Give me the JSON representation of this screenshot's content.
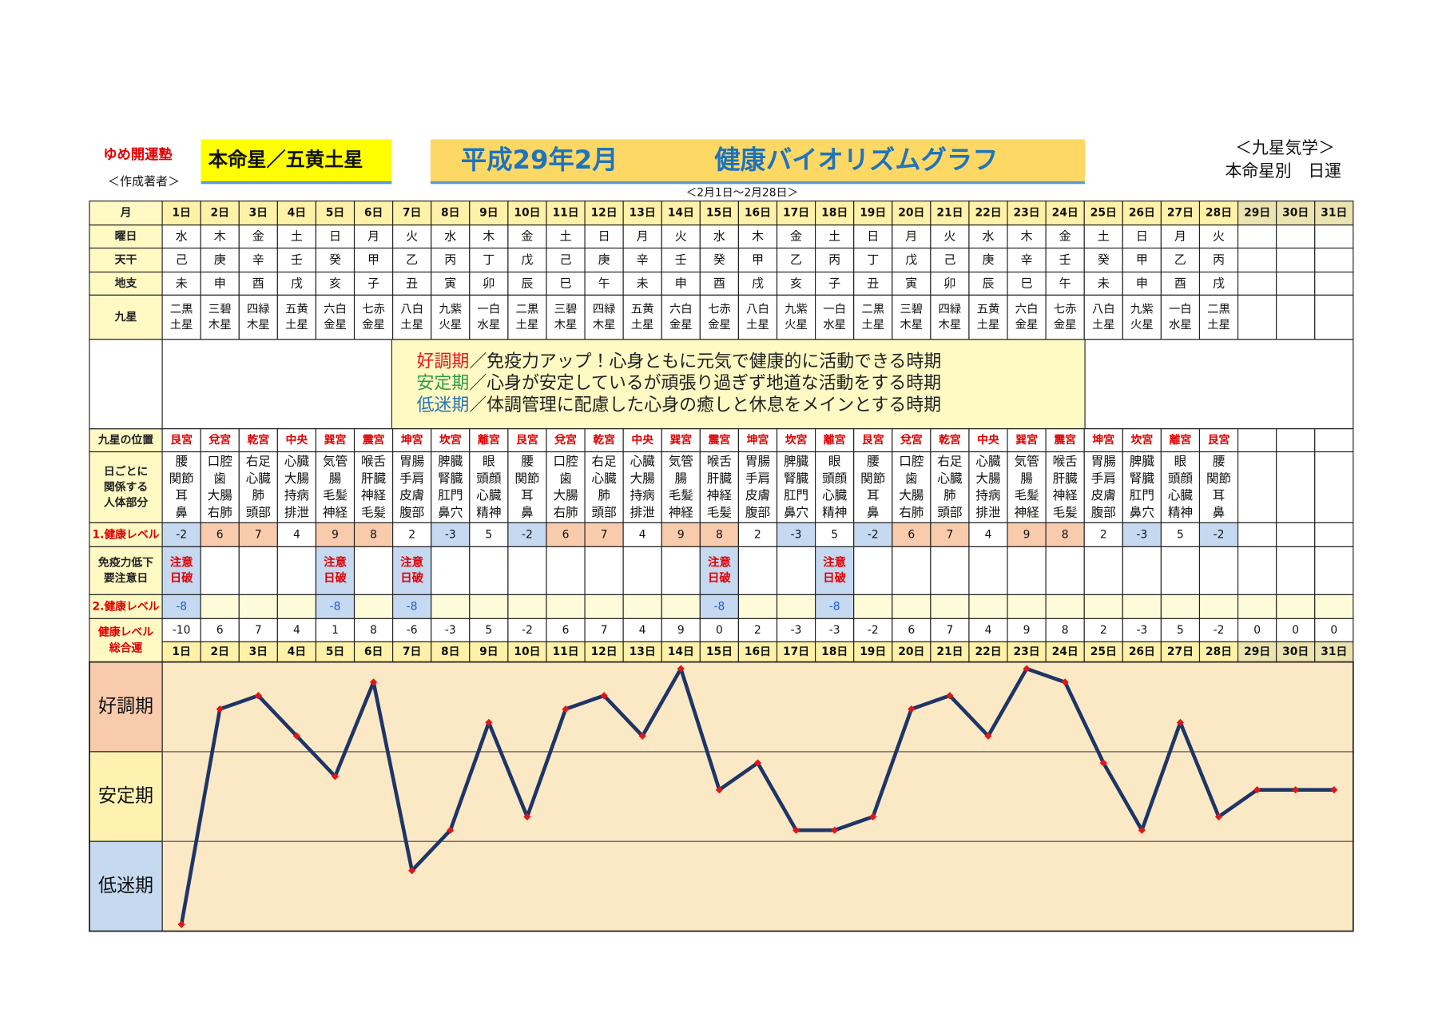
{
  "header": {
    "brand": "ゆめ開運塾",
    "author": "＜作成著者＞",
    "honmei": "本命星／五黄土星",
    "title_date": "平成29年2月",
    "title": "健康バイオリズムグラフ",
    "period": "＜2月1日～2月28日＞",
    "school": "＜九星気学＞",
    "subtitle": "本命星別　日運"
  },
  "table": {
    "accent_color": "#e00000",
    "row_headers": {
      "day": "月",
      "weekday": "曜日",
      "kan": "天干",
      "shi": "地支",
      "star": "九星",
      "position": "九星の位置",
      "body": [
        "日ごとに",
        "関係する",
        "人体部分"
      ],
      "level1": "1.健康レベル",
      "caution": [
        "免疫力低下",
        "要注意日"
      ],
      "level2": "2.健康レベル",
      "total": [
        "健康レベル",
        "総合運"
      ]
    },
    "weekdays": [
      "水",
      "木",
      "金",
      "土",
      "日",
      "月",
      "火",
      "水",
      "木",
      "金",
      "土",
      "日",
      "月",
      "火",
      "水",
      "木",
      "金",
      "土",
      "日",
      "月",
      "火",
      "水",
      "木",
      "金",
      "土",
      "日",
      "月",
      "火"
    ],
    "weekday_colors": [
      "#111",
      "#111",
      "#111",
      "#111",
      "#e00000",
      "#111",
      "#111",
      "#111",
      "#111",
      "#111",
      "#111",
      "#e00000",
      "#111",
      "#111",
      "#111",
      "#111",
      "#111",
      "#111",
      "#e00000",
      "#111",
      "#111",
      "#111",
      "#111",
      "#111",
      "#111",
      "#e00000",
      "#111",
      "#111"
    ],
    "kan": [
      "己",
      "庚",
      "辛",
      "壬",
      "癸",
      "甲",
      "乙",
      "丙",
      "丁",
      "戊",
      "己",
      "庚",
      "辛",
      "壬",
      "癸",
      "甲",
      "乙",
      "丙",
      "丁",
      "戊",
      "己",
      "庚",
      "辛",
      "壬",
      "癸",
      "甲",
      "乙",
      "丙"
    ],
    "shi": [
      "未",
      "申",
      "酉",
      "戌",
      "亥",
      "子",
      "丑",
      "寅",
      "卯",
      "辰",
      "巳",
      "午",
      "未",
      "申",
      "酉",
      "戌",
      "亥",
      "子",
      "丑",
      "寅",
      "卯",
      "辰",
      "巳",
      "午",
      "未",
      "申",
      "酉",
      "戌"
    ],
    "stars": [
      [
        "二黒",
        "土星"
      ],
      [
        "三碧",
        "木星"
      ],
      [
        "四緑",
        "木星"
      ],
      [
        "五黄",
        "土星"
      ],
      [
        "六白",
        "金星"
      ],
      [
        "七赤",
        "金星"
      ],
      [
        "八白",
        "土星"
      ],
      [
        "九紫",
        "火星"
      ],
      [
        "一白",
        "水星"
      ],
      [
        "二黒",
        "土星"
      ],
      [
        "三碧",
        "木星"
      ],
      [
        "四緑",
        "木星"
      ],
      [
        "五黄",
        "土星"
      ],
      [
        "六白",
        "金星"
      ],
      [
        "七赤",
        "金星"
      ],
      [
        "八白",
        "土星"
      ],
      [
        "九紫",
        "火星"
      ],
      [
        "一白",
        "水星"
      ],
      [
        "二黒",
        "土星"
      ],
      [
        "三碧",
        "木星"
      ],
      [
        "四緑",
        "木星"
      ],
      [
        "五黄",
        "土星"
      ],
      [
        "六白",
        "金星"
      ],
      [
        "七赤",
        "金星"
      ],
      [
        "八白",
        "土星"
      ],
      [
        "九紫",
        "火星"
      ],
      [
        "一白",
        "水星"
      ],
      [
        "二黒",
        "土星"
      ]
    ],
    "positions": [
      "艮宮",
      "兌宮",
      "乾宮",
      "中央",
      "巽宮",
      "震宮",
      "坤宮",
      "坎宮",
      "離宮",
      "艮宮",
      "兌宮",
      "乾宮",
      "中央",
      "巽宮",
      "震宮",
      "坤宮",
      "坎宮",
      "離宮",
      "艮宮",
      "兌宮",
      "乾宮",
      "中央",
      "巽宮",
      "震宮",
      "坤宮",
      "坎宮",
      "離宮",
      "艮宮"
    ],
    "body": [
      [
        "腰",
        "関節",
        "耳",
        "鼻"
      ],
      [
        "口腔",
        "歯",
        "大腸",
        "右肺"
      ],
      [
        "右足",
        "心臓",
        "肺",
        "頭部"
      ],
      [
        "心臓",
        "大腸",
        "持病",
        "排泄"
      ],
      [
        "気管",
        "腸",
        "毛髪",
        "神経"
      ],
      [
        "喉舌",
        "肝臓",
        "神経",
        "毛髪"
      ],
      [
        "胃腸",
        "手肩",
        "皮膚",
        "腹部"
      ],
      [
        "脾臓",
        "腎臓",
        "肛門",
        "鼻穴"
      ],
      [
        "眼",
        "頭顔",
        "心臓",
        "精神"
      ],
      [
        "腰",
        "関節",
        "耳",
        "鼻"
      ],
      [
        "口腔",
        "歯",
        "大腸",
        "右肺"
      ],
      [
        "右足",
        "心臓",
        "肺",
        "頭部"
      ],
      [
        "心臓",
        "大腸",
        "持病",
        "排泄"
      ],
      [
        "気管",
        "腸",
        "毛髪",
        "神経"
      ],
      [
        "喉舌",
        "肝臓",
        "神経",
        "毛髪"
      ],
      [
        "胃腸",
        "手肩",
        "皮膚",
        "腹部"
      ],
      [
        "脾臓",
        "腎臓",
        "肛門",
        "鼻穴"
      ],
      [
        "眼",
        "頭顔",
        "心臓",
        "精神"
      ],
      [
        "腰",
        "関節",
        "耳",
        "鼻"
      ],
      [
        "口腔",
        "歯",
        "大腸",
        "右肺"
      ],
      [
        "右足",
        "心臓",
        "肺",
        "頭部"
      ],
      [
        "心臓",
        "大腸",
        "持病",
        "排泄"
      ],
      [
        "気管",
        "腸",
        "毛髪",
        "神経"
      ],
      [
        "喉舌",
        "肝臓",
        "神経",
        "毛髪"
      ],
      [
        "胃腸",
        "手肩",
        "皮膚",
        "腹部"
      ],
      [
        "脾臓",
        "腎臓",
        "肛門",
        "鼻穴"
      ],
      [
        "眼",
        "頭顔",
        "心臓",
        "精神"
      ],
      [
        "腰",
        "関節",
        "耳",
        "鼻"
      ]
    ],
    "level1": [
      -2,
      6,
      7,
      4,
      9,
      8,
      2,
      -3,
      5,
      -2,
      6,
      7,
      4,
      9,
      8,
      2,
      -3,
      5,
      -2,
      6,
      7,
      4,
      9,
      8,
      2,
      -3,
      5,
      -2
    ],
    "level1_fills": [
      "#c5d9f1",
      "#f8cbad",
      "#f8cbad",
      "#ffffff",
      "#f8cbad",
      "#f8cbad",
      "#ffffff",
      "#c5d9f1",
      "#ffffff",
      "#c5d9f1",
      "#f8cbad",
      "#f8cbad",
      "#ffffff",
      "#f8cbad",
      "#f8cbad",
      "#ffffff",
      "#c5d9f1",
      "#ffffff",
      "#c5d9f1",
      "#f8cbad",
      "#f8cbad",
      "#ffffff",
      "#f8cbad",
      "#f8cbad",
      "#ffffff",
      "#c5d9f1",
      "#ffffff",
      "#c5d9f1"
    ],
    "caution": [
      [
        "注意",
        "日破"
      ],
      null,
      null,
      null,
      [
        "注意",
        "日破"
      ],
      null,
      [
        "注意",
        "日破"
      ],
      null,
      null,
      null,
      null,
      null,
      null,
      null,
      [
        "注意",
        "日破"
      ],
      null,
      null,
      [
        "注意",
        "日破"
      ],
      null,
      null,
      null,
      null,
      null,
      null,
      null,
      null,
      null,
      null
    ],
    "level2": [
      -8,
      null,
      null,
      null,
      -8,
      null,
      -8,
      null,
      null,
      null,
      null,
      null,
      null,
      null,
      -8,
      null,
      null,
      -8,
      null,
      null,
      null,
      null,
      null,
      null,
      null,
      null,
      null,
      null
    ]
  },
  "legend": [
    "／免疫力アップ！心身ともに元気で健康的に活動できる時期",
    "／心身が安定しているが頑張り過ぎず地道な活動をする時期",
    "／体調管理に配慮した心身の癒しと休息をメインとする時期"
  ],
  "chart_data": {
    "type": "line",
    "categories": [
      "1日",
      "2日",
      "3日",
      "4日",
      "5日",
      "6日",
      "7日",
      "8日",
      "9日",
      "10日",
      "11日",
      "12日",
      "13日",
      "14日",
      "15日",
      "16日",
      "17日",
      "18日",
      "19日",
      "20日",
      "21日",
      "22日",
      "23日",
      "24日",
      "25日",
      "26日",
      "27日",
      "28日",
      "29日",
      "30日",
      "31日"
    ],
    "values": [
      -10,
      6,
      7,
      4,
      1,
      8,
      -6,
      -3,
      5,
      -2,
      6,
      7,
      4,
      9,
      0,
      2,
      -3,
      -3,
      -2,
      6,
      7,
      4,
      9,
      8,
      2,
      -3,
      5,
      -2,
      0,
      0,
      0
    ],
    "ylim": [
      -10.5,
      9.5
    ],
    "color": "#1f3566",
    "marker_color": "#e0161b",
    "background": "#fbe9c6",
    "bands": [
      {
        "label": "好調期",
        "color": "#f8cbad",
        "text_color": "#e8161b"
      },
      {
        "label": "安定期",
        "color": "#fff2b0",
        "text_color": "#2e9b45"
      },
      {
        "label": "低迷期",
        "color": "#c5d9f1",
        "text_color": "#2e74b5"
      }
    ]
  }
}
